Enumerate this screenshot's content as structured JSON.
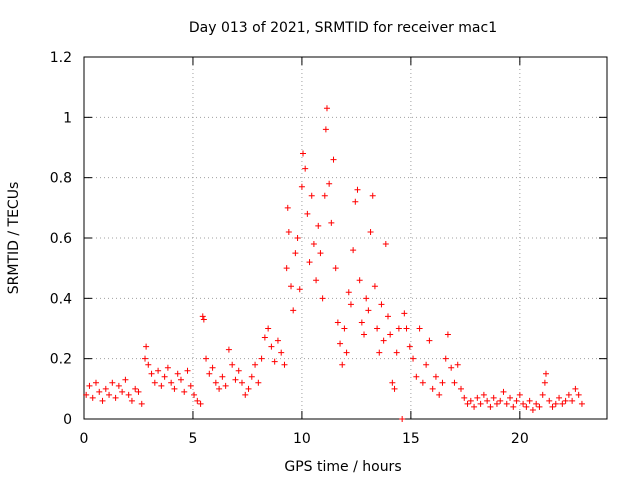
{
  "chart_data": {
    "type": "scatter",
    "title": "Day 013 of 2021, SRMTID for receiver mac1",
    "xlabel": "GPS time / hours",
    "ylabel": "SRMTID / TECUs",
    "xlim": [
      0,
      24
    ],
    "ylim": [
      0,
      1.2
    ],
    "x_ticks": [
      0,
      5,
      10,
      15,
      20
    ],
    "y_ticks": [
      0,
      0.2,
      0.4,
      0.6,
      0.8,
      1,
      1.2
    ],
    "x_tick_labels": [
      "0",
      "5",
      "10",
      "15",
      "20"
    ],
    "y_tick_labels": [
      "0",
      "0.2",
      "0.4",
      "0.6",
      "0.8",
      "1",
      "1.2"
    ],
    "grid": true,
    "marker": "plus",
    "color": "#ff0000",
    "series": [
      {
        "name": "SRMTID",
        "points": [
          [
            0.1,
            0.08
          ],
          [
            0.25,
            0.11
          ],
          [
            0.4,
            0.07
          ],
          [
            0.55,
            0.12
          ],
          [
            0.7,
            0.09
          ],
          [
            0.85,
            0.06
          ],
          [
            1.0,
            0.1
          ],
          [
            1.15,
            0.08
          ],
          [
            1.3,
            0.12
          ],
          [
            1.45,
            0.07
          ],
          [
            1.6,
            0.11
          ],
          [
            1.75,
            0.09
          ],
          [
            1.9,
            0.13
          ],
          [
            2.05,
            0.08
          ],
          [
            2.2,
            0.06
          ],
          [
            2.35,
            0.1
          ],
          [
            2.5,
            0.09
          ],
          [
            2.65,
            0.05
          ],
          [
            2.8,
            0.2
          ],
          [
            2.85,
            0.24
          ],
          [
            2.95,
            0.18
          ],
          [
            3.1,
            0.15
          ],
          [
            3.25,
            0.12
          ],
          [
            3.4,
            0.16
          ],
          [
            3.55,
            0.11
          ],
          [
            3.7,
            0.14
          ],
          [
            3.85,
            0.17
          ],
          [
            4.0,
            0.12
          ],
          [
            4.15,
            0.1
          ],
          [
            4.3,
            0.15
          ],
          [
            4.45,
            0.13
          ],
          [
            4.6,
            0.09
          ],
          [
            4.75,
            0.16
          ],
          [
            4.9,
            0.11
          ],
          [
            5.05,
            0.08
          ],
          [
            5.2,
            0.06
          ],
          [
            5.35,
            0.05
          ],
          [
            5.45,
            0.34
          ],
          [
            5.5,
            0.33
          ],
          [
            5.6,
            0.2
          ],
          [
            5.75,
            0.15
          ],
          [
            5.9,
            0.17
          ],
          [
            6.05,
            0.12
          ],
          [
            6.2,
            0.1
          ],
          [
            6.35,
            0.14
          ],
          [
            6.5,
            0.11
          ],
          [
            6.65,
            0.23
          ],
          [
            6.8,
            0.18
          ],
          [
            6.95,
            0.13
          ],
          [
            7.1,
            0.16
          ],
          [
            7.25,
            0.12
          ],
          [
            7.4,
            0.08
          ],
          [
            7.55,
            0.1
          ],
          [
            7.7,
            0.14
          ],
          [
            7.85,
            0.18
          ],
          [
            8.0,
            0.12
          ],
          [
            8.15,
            0.2
          ],
          [
            8.3,
            0.27
          ],
          [
            8.45,
            0.3
          ],
          [
            8.6,
            0.24
          ],
          [
            8.75,
            0.19
          ],
          [
            8.9,
            0.26
          ],
          [
            9.05,
            0.22
          ],
          [
            9.2,
            0.18
          ],
          [
            9.3,
            0.5
          ],
          [
            9.35,
            0.7
          ],
          [
            9.4,
            0.62
          ],
          [
            9.5,
            0.44
          ],
          [
            9.6,
            0.36
          ],
          [
            9.7,
            0.55
          ],
          [
            9.8,
            0.6
          ],
          [
            9.9,
            0.43
          ],
          [
            10.0,
            0.77
          ],
          [
            10.05,
            0.88
          ],
          [
            10.15,
            0.83
          ],
          [
            10.25,
            0.68
          ],
          [
            10.35,
            0.52
          ],
          [
            10.45,
            0.74
          ],
          [
            10.55,
            0.58
          ],
          [
            10.65,
            0.46
          ],
          [
            10.75,
            0.64
          ],
          [
            10.85,
            0.55
          ],
          [
            10.95,
            0.4
          ],
          [
            11.05,
            0.74
          ],
          [
            11.1,
            0.96
          ],
          [
            11.15,
            1.03
          ],
          [
            11.25,
            0.78
          ],
          [
            11.35,
            0.65
          ],
          [
            11.45,
            0.86
          ],
          [
            11.55,
            0.5
          ],
          [
            11.65,
            0.32
          ],
          [
            11.75,
            0.25
          ],
          [
            11.85,
            0.18
          ],
          [
            11.95,
            0.3
          ],
          [
            12.05,
            0.22
          ],
          [
            12.15,
            0.42
          ],
          [
            12.25,
            0.38
          ],
          [
            12.35,
            0.56
          ],
          [
            12.45,
            0.72
          ],
          [
            12.55,
            0.76
          ],
          [
            12.65,
            0.46
          ],
          [
            12.75,
            0.32
          ],
          [
            12.85,
            0.28
          ],
          [
            12.95,
            0.4
          ],
          [
            13.05,
            0.36
          ],
          [
            13.15,
            0.62
          ],
          [
            13.25,
            0.74
          ],
          [
            13.35,
            0.44
          ],
          [
            13.45,
            0.3
          ],
          [
            13.55,
            0.22
          ],
          [
            13.65,
            0.38
          ],
          [
            13.75,
            0.26
          ],
          [
            13.85,
            0.58
          ],
          [
            13.95,
            0.34
          ],
          [
            14.05,
            0.28
          ],
          [
            14.15,
            0.12
          ],
          [
            14.25,
            0.1
          ],
          [
            14.35,
            0.22
          ],
          [
            14.45,
            0.3
          ],
          [
            14.6,
            0.0
          ],
          [
            14.7,
            0.35
          ],
          [
            14.8,
            0.3
          ],
          [
            14.95,
            0.24
          ],
          [
            15.1,
            0.2
          ],
          [
            15.25,
            0.14
          ],
          [
            15.4,
            0.3
          ],
          [
            15.55,
            0.12
          ],
          [
            15.7,
            0.18
          ],
          [
            15.85,
            0.26
          ],
          [
            16.0,
            0.1
          ],
          [
            16.15,
            0.14
          ],
          [
            16.3,
            0.08
          ],
          [
            16.45,
            0.12
          ],
          [
            16.6,
            0.2
          ],
          [
            16.7,
            0.28
          ],
          [
            16.85,
            0.17
          ],
          [
            17.0,
            0.12
          ],
          [
            17.15,
            0.18
          ],
          [
            17.3,
            0.1
          ],
          [
            17.45,
            0.07
          ],
          [
            17.6,
            0.05
          ],
          [
            17.75,
            0.06
          ],
          [
            17.9,
            0.04
          ],
          [
            18.05,
            0.07
          ],
          [
            18.2,
            0.05
          ],
          [
            18.35,
            0.08
          ],
          [
            18.5,
            0.06
          ],
          [
            18.65,
            0.04
          ],
          [
            18.8,
            0.07
          ],
          [
            18.95,
            0.05
          ],
          [
            19.1,
            0.06
          ],
          [
            19.25,
            0.09
          ],
          [
            19.4,
            0.05
          ],
          [
            19.55,
            0.07
          ],
          [
            19.7,
            0.04
          ],
          [
            19.85,
            0.06
          ],
          [
            20.0,
            0.08
          ],
          [
            20.15,
            0.05
          ],
          [
            20.3,
            0.04
          ],
          [
            20.45,
            0.06
          ],
          [
            20.6,
            0.03
          ],
          [
            20.75,
            0.05
          ],
          [
            20.9,
            0.04
          ],
          [
            21.05,
            0.08
          ],
          [
            21.15,
            0.12
          ],
          [
            21.2,
            0.15
          ],
          [
            21.35,
            0.06
          ],
          [
            21.5,
            0.04
          ],
          [
            21.65,
            0.05
          ],
          [
            21.8,
            0.07
          ],
          [
            21.95,
            0.05
          ],
          [
            22.1,
            0.06
          ],
          [
            22.25,
            0.08
          ],
          [
            22.4,
            0.06
          ],
          [
            22.55,
            0.1
          ],
          [
            22.7,
            0.08
          ],
          [
            22.85,
            0.05
          ]
        ]
      }
    ]
  }
}
